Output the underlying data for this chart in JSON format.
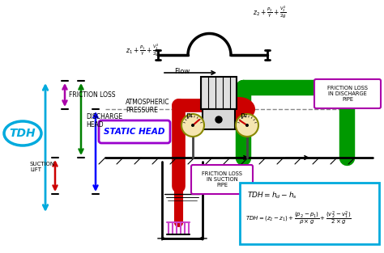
{
  "bg_color": "#f5f5f5",
  "colors": {
    "red_pipe": "#cc0000",
    "green_pipe": "#009900",
    "cyan_TDH": "#00aadd",
    "purple_arrow": "#aa00aa",
    "blue_arrow": "#0000ff",
    "red_arrow": "#cc0000",
    "magenta_box": "#aa00aa",
    "formula_box": "#00aadd",
    "static_head_text": "#0000ff",
    "static_head_box": "#9900cc",
    "atm_line": "#888888"
  },
  "labels": {
    "TDH": "TDH",
    "friction_loss": "FRICTION LOSS",
    "discharge_head": "DISCHARGE\nHEAD",
    "atmospheric": "ATMOSPHERIC\nPRESSURE",
    "static_head": "STATIC HEAD",
    "suction_lift": "SUCTION\nLIFT",
    "friction_suction": "FRICTION LOSS\nIN SUCTION\nPIPE",
    "friction_discharge": "FRICTION LOSS\nIN DISCHARGE\nPIPE",
    "flow": "Flow",
    "p1": "p₁",
    "p2": "p₂"
  }
}
